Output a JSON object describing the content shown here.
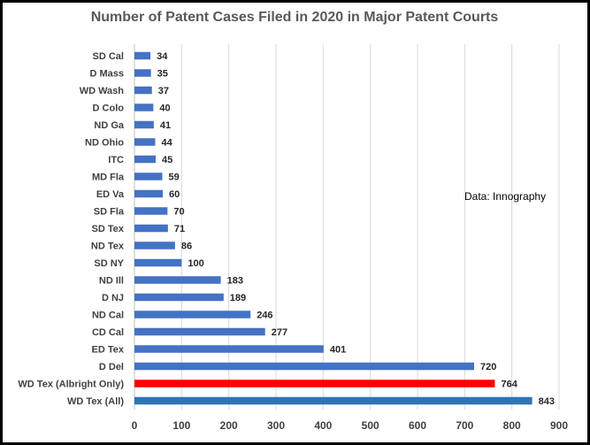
{
  "chart_data": {
    "type": "bar",
    "orientation": "horizontal",
    "title": "Number of Patent Cases Filed in 2020 in Major Patent Courts",
    "annotation": "Data:  Innography",
    "xlabel": "",
    "ylabel": "",
    "xlim": [
      0,
      900
    ],
    "xticks": [
      0,
      100,
      200,
      300,
      400,
      500,
      600,
      700,
      800,
      900
    ],
    "grid": true,
    "categories": [
      "SD Cal",
      "D Mass",
      "WD Wash",
      "D Colo",
      "ND Ga",
      "ND Ohio",
      "ITC",
      "MD Fla",
      "ED Va",
      "SD Fla",
      "SD Tex",
      "ND Tex",
      "SD NY",
      "ND Ill",
      "D NJ",
      "ND Cal",
      "CD Cal",
      "ED Tex",
      "D Del",
      "WD Tex (Albright Only)",
      "WD Tex (All)"
    ],
    "values": [
      34,
      35,
      37,
      40,
      41,
      44,
      45,
      59,
      60,
      70,
      71,
      86,
      100,
      183,
      189,
      246,
      277,
      401,
      720,
      764,
      843
    ],
    "colors": [
      "#4472c4",
      "#4472c4",
      "#4472c4",
      "#4472c4",
      "#4472c4",
      "#4472c4",
      "#4472c4",
      "#4472c4",
      "#4472c4",
      "#4472c4",
      "#4472c4",
      "#4472c4",
      "#4472c4",
      "#4472c4",
      "#4472c4",
      "#4472c4",
      "#4472c4",
      "#4472c4",
      "#4472c4",
      "#ff0000",
      "#2e75b6"
    ]
  }
}
